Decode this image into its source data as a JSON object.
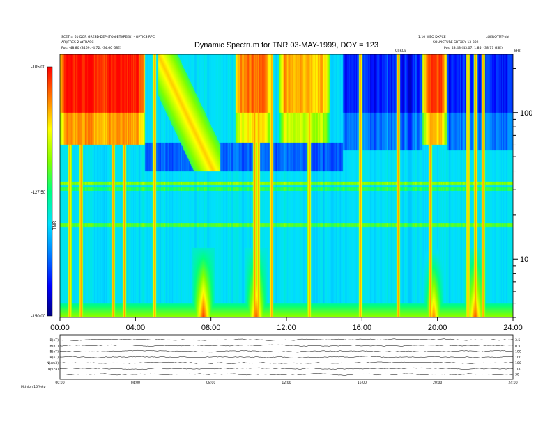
{
  "header": {
    "top_left_line1": "SCET = 61-DOR GRESD-DEP (TON-BTXPEER) - OPTICS RPC",
    "top_left_line2": "ARJ/FRES 2 atTRASC",
    "top_left_line3": "Pos:   -48.80 (3469, -4.72, -34.60 GSE)",
    "top_right_line1": "1.10 WEO DXFCE",
    "top_right_line1b": "LGEROTMT-xbt",
    "top_right_line2": "SOLPICTURE SBTXEY 13-302",
    "top_right_line3": "Pos:   43.43 (43.07, 1.85, -38.77 GSE)",
    "small_marker": "GSROE",
    "unit_label": "kHz",
    "colorbar_unit": "TNR",
    "footer_left": "Mdnlon 16f9#p"
  },
  "chart_data": {
    "type": "heatmap",
    "title": "Dynamic Spectrum for TNR 03-MAY-1999, DOY = 123",
    "x_ticks": [
      "00:00",
      "04:00",
      "08:00",
      "12:00",
      "16:00",
      "20:00",
      "24:00"
    ],
    "x_range_hours": [
      0,
      24
    ],
    "y_scale": "log",
    "y_range_khz": [
      4,
      250
    ],
    "y_ticks": [
      {
        "label": "10",
        "value": 10
      },
      {
        "label": "100",
        "value": 100
      }
    ],
    "colorbar": {
      "range_db": [
        -150,
        -105
      ],
      "tick_labels": [
        "-105.00",
        "-127.50",
        "-150.00"
      ],
      "colors": [
        "#00007f",
        "#0000ff",
        "#0080ff",
        "#00e0ff",
        "#00ff80",
        "#80ff00",
        "#ffff00",
        "#ff8000",
        "#ff0000"
      ]
    },
    "features": {
      "background_level_db": -133,
      "low_freq_enhancement_db": -115,
      "high_freq_bursts": [
        {
          "start_h": 0.0,
          "end_h": 4.5,
          "level_db": -106
        },
        {
          "start_h": 9.3,
          "end_h": 11.2,
          "level_db": -110
        },
        {
          "start_h": 11.6,
          "end_h": 14.3,
          "level_db": -113
        },
        {
          "start_h": 19.2,
          "end_h": 20.5,
          "level_db": -108
        }
      ],
      "drifting_type3_burst": {
        "start_h": 5.2,
        "end_h": 8.5,
        "level_db": -114
      },
      "narrowband_lines_khz": [
        33,
        17,
        30
      ],
      "vertical_spikes_h": [
        0.5,
        1.1,
        2.8,
        3.4,
        5.0,
        10.3,
        10.5,
        11.2,
        13.2,
        15.9,
        17.9,
        19.6,
        21.6,
        22.0,
        22.4
      ],
      "low_freq_patches": [
        {
          "center_h": 7.6,
          "level_db": -107
        },
        {
          "center_h": 10.4,
          "level_db": -108
        },
        {
          "center_h": 19.8,
          "level_db": -110
        },
        {
          "center_h": 22.0,
          "level_db": -108
        }
      ],
      "dark_region": {
        "start_h": 15.0,
        "end_h": 24.0,
        "level_db": -143
      }
    },
    "lower_panel": {
      "x_ticks": [
        "00:00",
        "04:00",
        "08:00",
        "12:00",
        "16:00",
        "20:00",
        "24:00"
      ],
      "traces": [
        {
          "label": "B(nT)",
          "right_label": "3.5"
        },
        {
          "label": "B(nT)",
          "right_label": "0.5"
        },
        {
          "label": "B(nT)",
          "right_label": "100"
        },
        {
          "label": "B(nT)",
          "right_label": "100"
        },
        {
          "label": "N(cm3)",
          "right_label": "100"
        },
        {
          "label": "Np(ca)",
          "right_label": "100"
        },
        {
          "label": "",
          "right_label": "30"
        }
      ]
    }
  }
}
